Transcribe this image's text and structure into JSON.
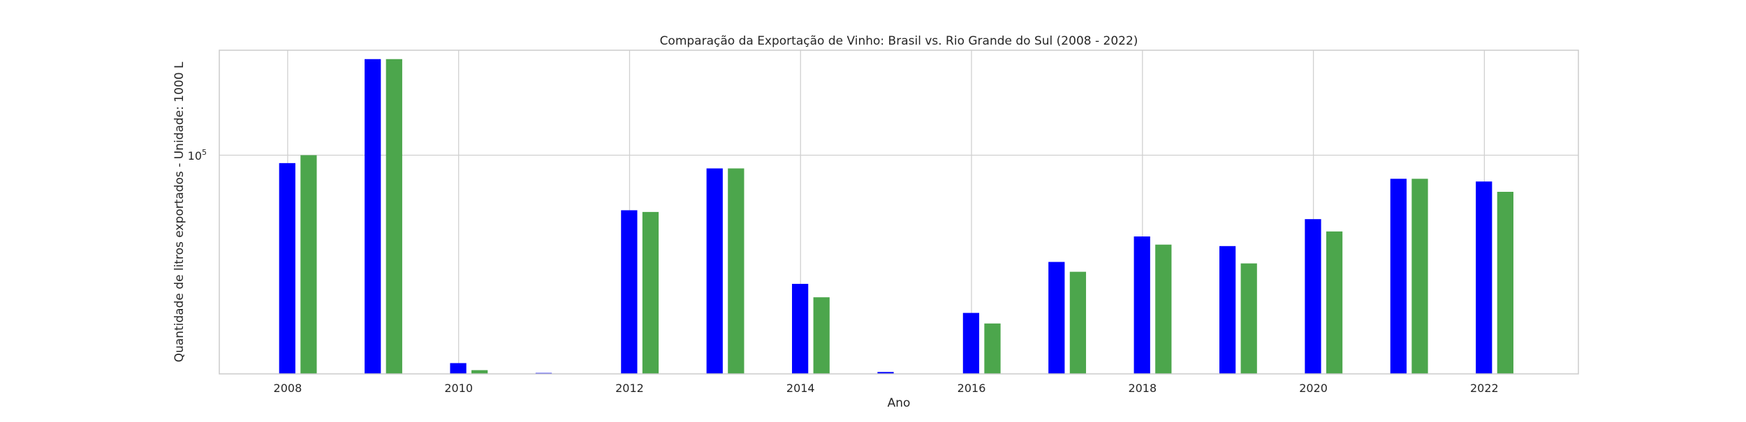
{
  "chart_data": {
    "type": "bar",
    "title": "Comparação da Exportação de Vinho: Brasil vs. Rio Grande do Sul (2008 - 2022)",
    "xlabel": "Ano",
    "ylabel": "Quantidade de litros exportados - Unidade: 1000 L",
    "yscale": "log",
    "ytick_label": {
      "base": "10",
      "exponent": "5"
    },
    "x": [
      2008,
      2009,
      2010,
      2011,
      2012,
      2013,
      2014,
      2015,
      2016,
      2017,
      2018,
      2019,
      2020,
      2021,
      2022
    ],
    "xticks": [
      "2008",
      "2010",
      "2012",
      "2014",
      "2016",
      "2018",
      "2020",
      "2022"
    ],
    "xlim": [
      2007.2,
      2023.1
    ],
    "ylim_log10": [
      4.0,
      5.48
    ],
    "grid": true,
    "series": [
      {
        "color": "#0000ff",
        "values": [
          92000,
          275000,
          11200,
          10100,
          56000,
          87000,
          25800,
          10200,
          19000,
          32500,
          42500,
          38400,
          51000,
          78000,
          75800
        ]
      },
      {
        "color": "#4ca64c",
        "values": [
          100000,
          275000,
          10400,
          9400,
          55000,
          87000,
          22400,
          9400,
          17000,
          29300,
          39000,
          32000,
          44800,
          78000,
          68000
        ]
      }
    ]
  }
}
